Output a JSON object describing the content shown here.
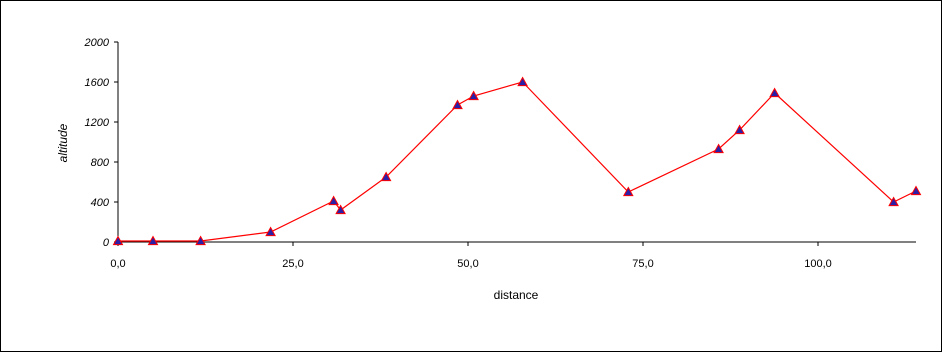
{
  "chart_data": {
    "type": "line",
    "xlabel": "distance",
    "ylabel": "altitude",
    "xlim": [
      0,
      114
    ],
    "ylim": [
      0,
      2000
    ],
    "xticks": [
      "0,0",
      "25,0",
      "50,0",
      "75,0",
      "100,0"
    ],
    "yticks": [
      "0",
      "400",
      "800",
      "1200",
      "1600",
      "2000"
    ],
    "xtick_values": [
      0,
      25,
      50,
      75,
      100
    ],
    "ytick_values": [
      0,
      400,
      800,
      1200,
      1600,
      2000
    ],
    "grid": false,
    "legend": "none",
    "series": [
      {
        "line_color": "#ff0000",
        "marker": "triangle",
        "marker_color": "#2b1fa8",
        "x": [
          0.0,
          5.0,
          11.8,
          21.8,
          30.8,
          31.8,
          38.3,
          48.5,
          50.8,
          57.8,
          72.9,
          85.8,
          88.8,
          93.8,
          110.8,
          114.0
        ],
        "y": [
          10,
          10,
          10,
          100,
          410,
          320,
          650,
          1370,
          1460,
          1600,
          500,
          930,
          1120,
          1490,
          400,
          510
        ]
      }
    ]
  }
}
